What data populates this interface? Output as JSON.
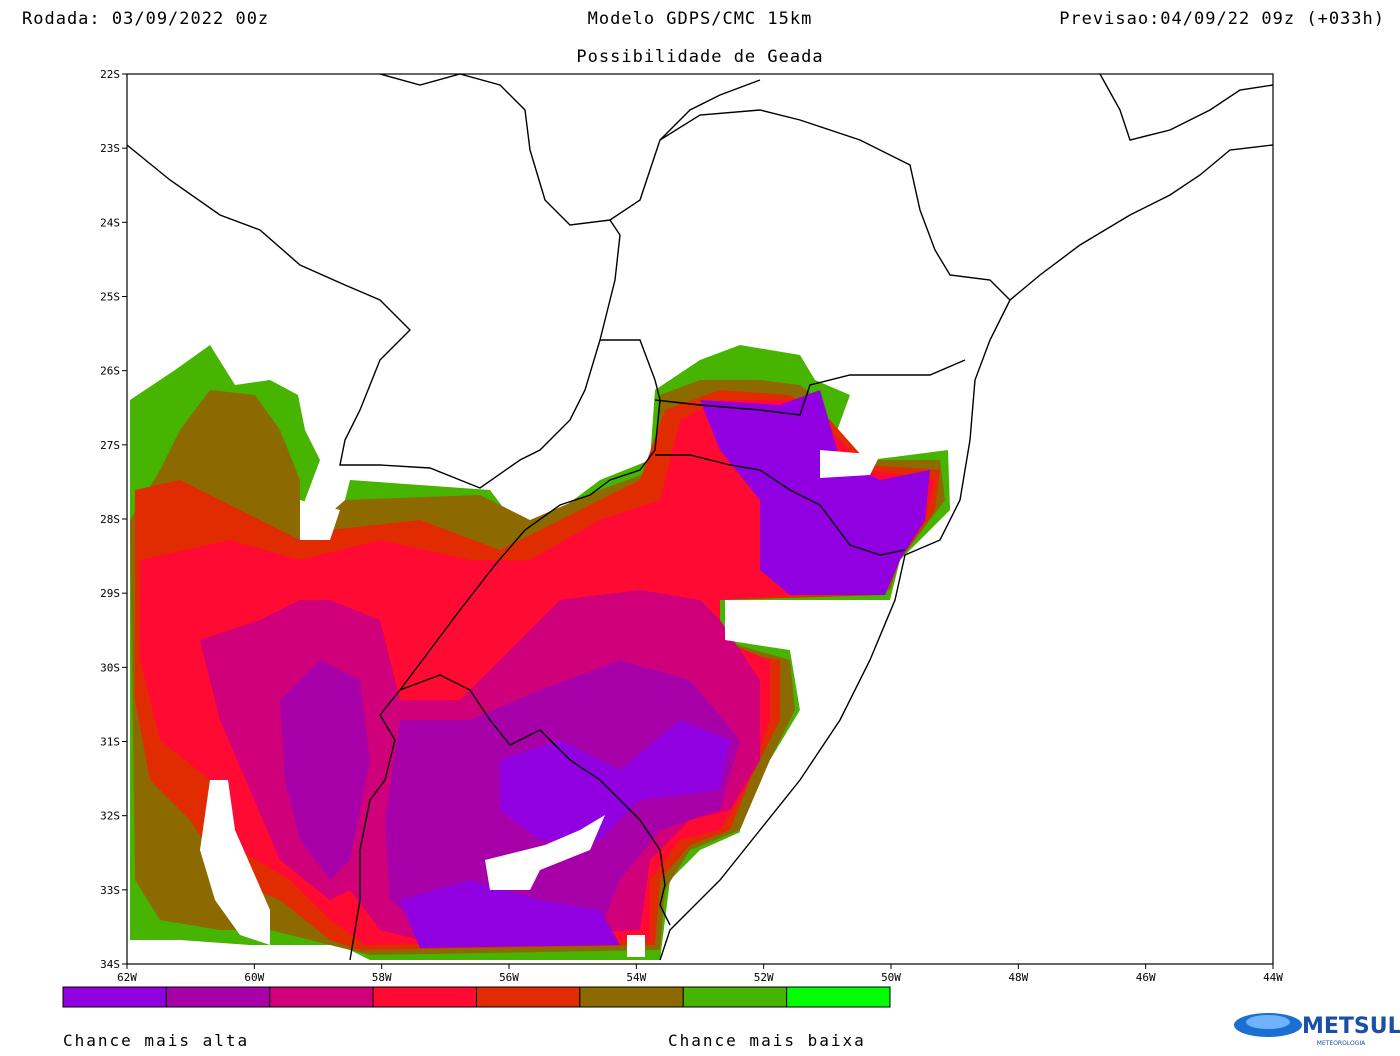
{
  "header": {
    "run": "Rodada: 03/09/2022 00z",
    "model": "Modelo GDPS/CMC 15km",
    "forecast": "Previsao:04/09/22 09z (+033h)",
    "subtitle": "Possibilidade de Geada"
  },
  "map": {
    "lat_labels": [
      "22S",
      "23S",
      "24S",
      "25S",
      "26S",
      "27S",
      "28S",
      "29S",
      "30S",
      "31S",
      "32S",
      "33S",
      "34S"
    ],
    "lon_labels": [
      "62W",
      "60W",
      "58W",
      "56W",
      "54W",
      "52W",
      "50W",
      "48W",
      "46W",
      "44W"
    ]
  },
  "legend": {
    "colors": [
      "#9000e0",
      "#a800a8",
      "#d0007a",
      "#ff0a32",
      "#e02c00",
      "#8c6a00",
      "#46b400",
      "#00ff00"
    ],
    "high_label": "Chance mais alta",
    "low_label": "Chance mais baixa"
  },
  "logo": {
    "name": "METSUL",
    "tagline": "METEOROLOGIA"
  }
}
